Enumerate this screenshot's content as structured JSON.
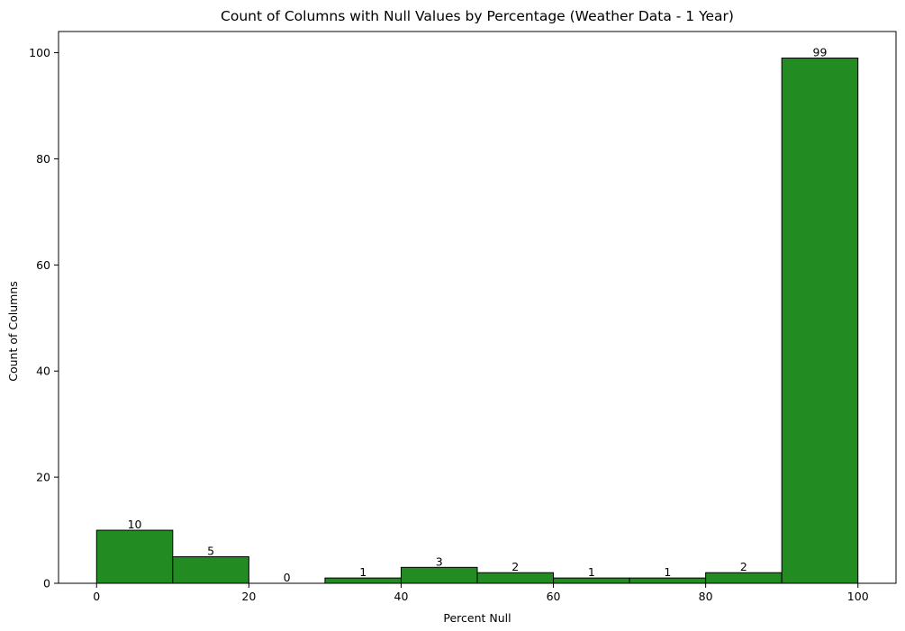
{
  "chart_data": {
    "type": "bar",
    "title": "Count of Columns with Null Values by Percentage (Weather Data - 1 Year)",
    "xlabel": "Percent Null",
    "ylabel": "Count of Columns",
    "bins": [
      {
        "start": 0,
        "end": 10,
        "value": 10,
        "label": "10"
      },
      {
        "start": 10,
        "end": 20,
        "value": 5,
        "label": "5"
      },
      {
        "start": 20,
        "end": 30,
        "value": 0,
        "label": "0"
      },
      {
        "start": 30,
        "end": 40,
        "value": 1,
        "label": "1"
      },
      {
        "start": 40,
        "end": 50,
        "value": 3,
        "label": "3"
      },
      {
        "start": 50,
        "end": 60,
        "value": 2,
        "label": "2"
      },
      {
        "start": 60,
        "end": 70,
        "value": 1,
        "label": "1"
      },
      {
        "start": 70,
        "end": 80,
        "value": 1,
        "label": "1"
      },
      {
        "start": 80,
        "end": 90,
        "value": 2,
        "label": "2"
      },
      {
        "start": 90,
        "end": 100,
        "value": 99,
        "label": "99"
      }
    ],
    "xticks": [
      0,
      20,
      40,
      60,
      80,
      100
    ],
    "yticks": [
      0,
      20,
      40,
      60,
      80,
      100
    ],
    "xlim": [
      -5,
      105
    ],
    "ylim": [
      0,
      104
    ],
    "grid": false,
    "colors": {
      "bar_fill": "#228b22",
      "bar_edge": "#000000"
    }
  }
}
